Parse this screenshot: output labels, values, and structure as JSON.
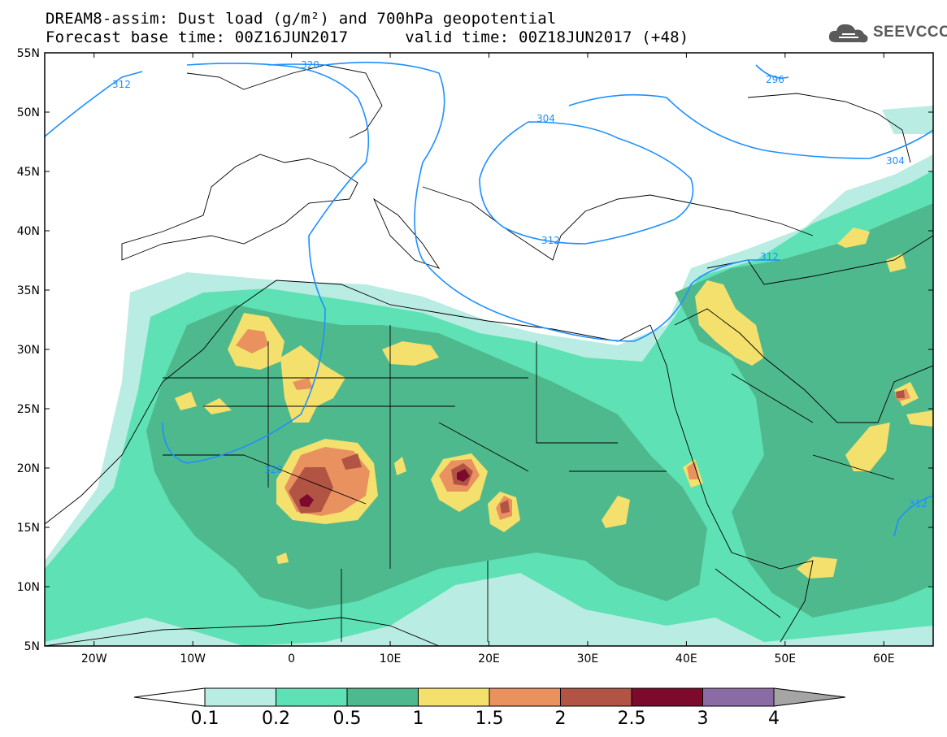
{
  "header": {
    "line1": "DREAM8-assim: Dust load (g/m²) and 700hPa geopotential",
    "line2": "Forecast base time: 00Z16JUN2017      valid time: 00Z18JUN2017 (+48)"
  },
  "logo": {
    "text": "SEEVCCC",
    "icon": "cloud-icon"
  },
  "map": {
    "projection": "lat-lon",
    "lon_range": [
      -25,
      65
    ],
    "lat_range": [
      5,
      55
    ],
    "lat_ticks": [
      "5N",
      "10N",
      "15N",
      "20N",
      "25N",
      "30N",
      "35N",
      "40N",
      "45N",
      "50N",
      "55N"
    ],
    "lon_ticks": [
      "20W",
      "10W",
      "0",
      "10E",
      "20E",
      "30E",
      "40E",
      "50E",
      "60E"
    ],
    "contour_labels": [
      "312",
      "320",
      "304",
      "296",
      "304",
      "312",
      "312",
      "312",
      "320"
    ],
    "contour_color": "#1e90ff"
  },
  "colorbar": {
    "labels": [
      "0.1",
      "0.2",
      "0.5",
      "1",
      "1.5",
      "2",
      "2.5",
      "3",
      "4"
    ],
    "colors": [
      "#b9ece2",
      "#5ee1b4",
      "#4fb98e",
      "#f3e06d",
      "#ea9160",
      "#b15444",
      "#7c0a2d",
      "#8b6ba6",
      "#a5a5a5"
    ],
    "under_color": "#ffffff"
  },
  "fill_colors": {
    "c01": "#b9ece2",
    "c02": "#5ee1b4",
    "c05": "#4fb98e",
    "c1": "#f3e06d",
    "c15": "#ea9160",
    "c2": "#b15444",
    "c25": "#7c0a2d"
  }
}
